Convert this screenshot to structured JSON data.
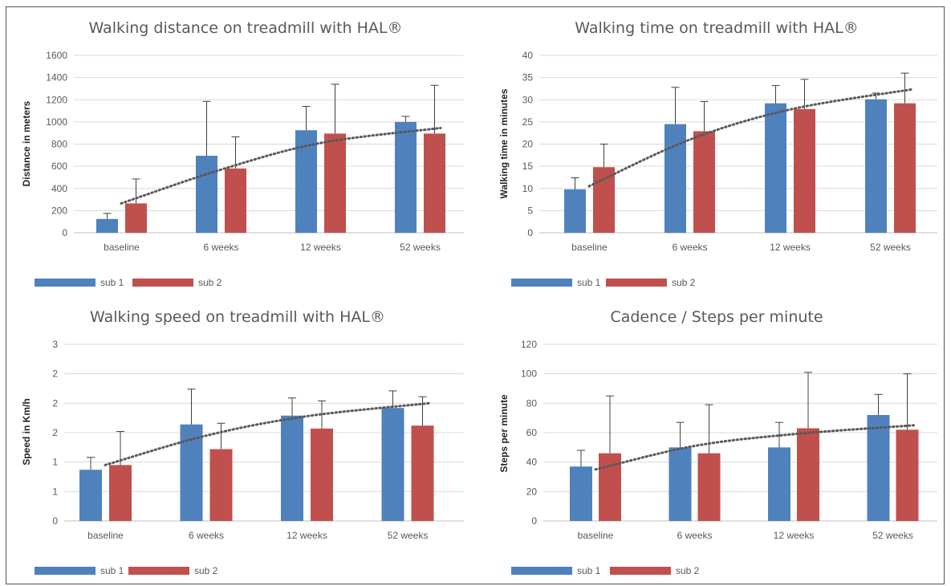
{
  "colors": {
    "sub1": "#4f81bd",
    "sub2": "#c0504d",
    "grid": "#d9d9d9",
    "error": "#404040",
    "trend": "#595959"
  },
  "chart_data": [
    {
      "type": "bar",
      "title": "Walking distance on treadmill with HAL®",
      "ylabel": "Distance in meters",
      "categories": [
        "baseline",
        "6 weeks",
        "12 weeks",
        "52 weeks"
      ],
      "ylim": [
        0,
        1600
      ],
      "yticks": [
        "0",
        "200",
        "400",
        "600",
        "800",
        "1000",
        "1200",
        "1400",
        "1600"
      ],
      "series": [
        {
          "name": "sub 1",
          "values": [
            125,
            695,
            925,
            1000
          ],
          "error_top": [
            175,
            1185,
            1140,
            1050
          ]
        },
        {
          "name": "sub 2",
          "values": [
            265,
            580,
            895,
            895
          ],
          "error_top": [
            485,
            865,
            1340,
            1330
          ]
        }
      ],
      "trendline": [
        265,
        570,
        810,
        945
      ],
      "grid": true,
      "legend": "bottom-left"
    },
    {
      "type": "bar",
      "title": "Walking time on treadmill with HAL®",
      "ylabel": "Walking time in minutes",
      "categories": [
        "baseline",
        "6 weeks",
        "12 weeks",
        "52 weeks"
      ],
      "ylim": [
        0,
        40
      ],
      "yticks": [
        "0",
        "5",
        "10",
        "15",
        "20",
        "25",
        "30",
        "35",
        "40"
      ],
      "series": [
        {
          "name": "sub 1",
          "values": [
            9.8,
            24.5,
            29.2,
            30.1
          ],
          "error_top": [
            12.4,
            32.8,
            33.2,
            31.5
          ]
        },
        {
          "name": "sub 2",
          "values": [
            14.8,
            22.9,
            27.9,
            29.2
          ],
          "error_top": [
            20,
            29.6,
            34.6,
            36
          ]
        }
      ],
      "trendline": [
        10.5,
        21,
        27.8,
        32.3
      ],
      "grid": true,
      "legend": "bottom-left"
    },
    {
      "type": "bar",
      "title": "Walking speed on treadmill with HAL®",
      "ylabel": "Speed in Km/h",
      "categories": [
        "baseline",
        "6 weeks",
        "12 weeks",
        "52 weeks"
      ],
      "ylim": [
        0,
        3
      ],
      "yticks": [
        "0",
        "1",
        "1",
        "2",
        "2",
        "2",
        "3"
      ],
      "series": [
        {
          "name": "sub 1",
          "values": [
            0.87,
            1.64,
            1.79,
            1.92
          ],
          "error_top": [
            1.08,
            2.24,
            2.09,
            2.21
          ]
        },
        {
          "name": "sub 2",
          "values": [
            0.95,
            1.22,
            1.57,
            1.62
          ],
          "error_top": [
            1.52,
            1.66,
            2.04,
            2.11
          ]
        }
      ],
      "trendline": [
        0.95,
        1.45,
        1.78,
        2.0
      ],
      "grid": true,
      "legend": "bottom-left"
    },
    {
      "type": "bar",
      "title": "Cadence / Steps per minute",
      "ylabel": "Steps per minute",
      "categories": [
        "baseline",
        "6 weeks",
        "12 weeks",
        "52 weeks"
      ],
      "ylim": [
        0,
        120
      ],
      "yticks": [
        "0",
        "20",
        "40",
        "60",
        "80",
        "100",
        "120"
      ],
      "series": [
        {
          "name": "sub 1",
          "values": [
            37,
            50,
            50,
            72
          ],
          "error_top": [
            48,
            67,
            67,
            86
          ]
        },
        {
          "name": "sub 2",
          "values": [
            46,
            46,
            63,
            62
          ],
          "error_top": [
            85,
            79,
            101,
            100
          ]
        }
      ],
      "trendline": [
        35,
        51,
        59,
        65
      ],
      "grid": true,
      "legend": "bottom-left"
    }
  ]
}
